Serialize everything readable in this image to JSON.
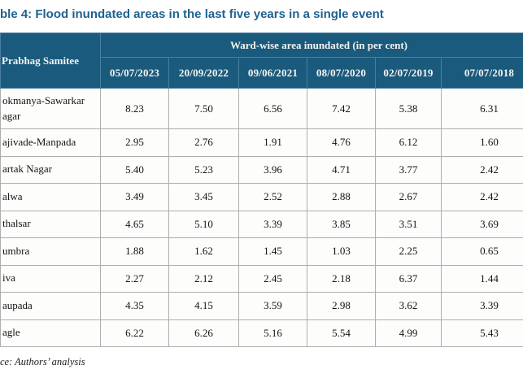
{
  "title": "ble 4: Flood inundated areas in the last five years in a single event",
  "table": {
    "row_header": "Prabhag Samitee",
    "group_header": "Ward-wise area inundated (in per cent)",
    "date_columns": [
      "05/07/2023",
      "20/09/2022",
      "09/06/2021",
      "08/07/2020",
      "02/07/2019",
      "07/07/2018"
    ],
    "rows": [
      {
        "label": "okmanya-Sawarkar agar",
        "values": [
          "8.23",
          "7.50",
          "6.56",
          "7.42",
          "5.38",
          "6.31"
        ]
      },
      {
        "label": "ajivade-Manpada",
        "values": [
          "2.95",
          "2.76",
          "1.91",
          "4.76",
          "6.12",
          "1.60"
        ]
      },
      {
        "label": "artak Nagar",
        "values": [
          "5.40",
          "5.23",
          "3.96",
          "4.71",
          "3.77",
          "2.42"
        ]
      },
      {
        "label": "alwa",
        "values": [
          "3.49",
          "3.45",
          "2.52",
          "2.88",
          "2.67",
          "2.42"
        ]
      },
      {
        "label": "thalsar",
        "values": [
          "4.65",
          "5.10",
          "3.39",
          "3.85",
          "3.51",
          "3.69"
        ]
      },
      {
        "label": "umbra",
        "values": [
          "1.88",
          "1.62",
          "1.45",
          "1.03",
          "2.25",
          "0.65"
        ]
      },
      {
        "label": "iva",
        "values": [
          "2.27",
          "2.12",
          "2.45",
          "2.18",
          "6.37",
          "1.44"
        ]
      },
      {
        "label": "aupada",
        "values": [
          "4.35",
          "4.15",
          "3.59",
          "2.98",
          "3.62",
          "3.39"
        ]
      },
      {
        "label": "agle",
        "values": [
          "6.22",
          "6.26",
          "5.16",
          "5.54",
          "4.99",
          "5.43"
        ]
      }
    ]
  },
  "source": "ce: Authors’ analysis",
  "colors": {
    "header_bg": "#1a5a7d",
    "header_divider": "#4a7e9e",
    "title_text": "#1d6291",
    "grid_line": "#aeaeae"
  }
}
